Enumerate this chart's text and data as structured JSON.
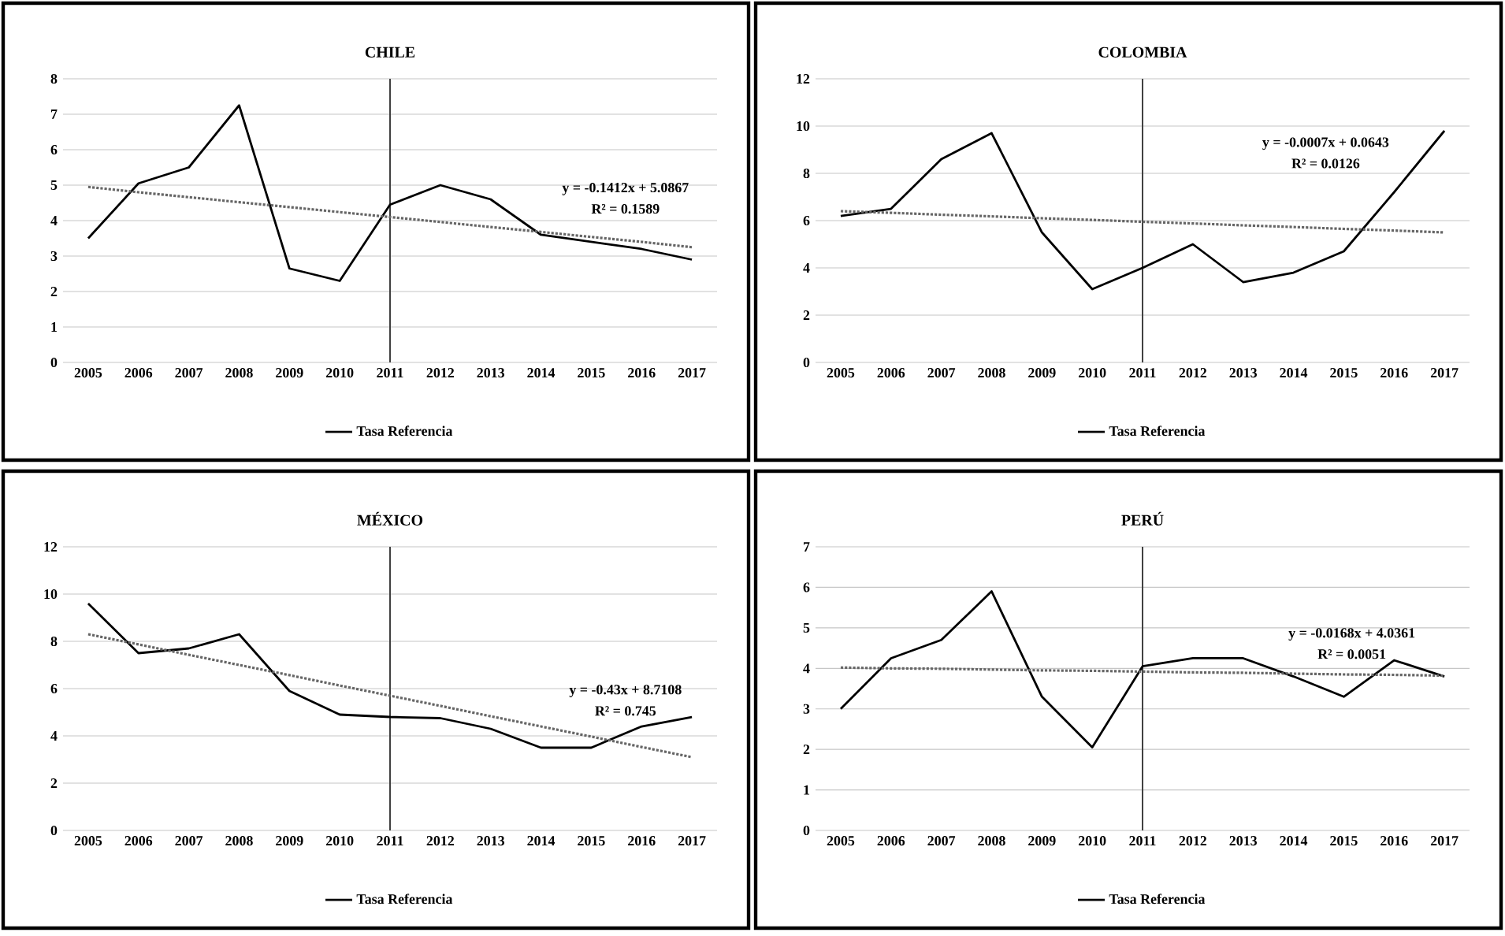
{
  "chart_data": [
    {
      "type": "line",
      "title": "CHILE",
      "categories": [
        "2005",
        "2006",
        "2007",
        "2008",
        "2009",
        "2010",
        "2011",
        "2012",
        "2013",
        "2014",
        "2015",
        "2016",
        "2017"
      ],
      "ylim": [
        0,
        8
      ],
      "yticks": [
        0,
        1,
        2,
        3,
        4,
        5,
        6,
        7,
        8
      ],
      "grid": "y",
      "legend": "bottom",
      "series": [
        {
          "name": "Tasa Referencia",
          "color": "#000000",
          "values": [
            3.5,
            5.05,
            5.5,
            7.25,
            2.65,
            2.3,
            4.45,
            5.0,
            4.6,
            3.6,
            3.4,
            3.2,
            2.9
          ]
        },
        {
          "type": "line",
          "values": [
            4.95,
            4.8,
            4.66,
            4.52,
            4.38,
            4.24,
            4.1,
            3.96,
            3.82,
            3.68,
            3.54,
            3.4,
            3.25
          ],
          "color": "#666666",
          "line_style": "dotted"
        }
      ],
      "ref_lines": [
        {
          "axis": "x",
          "value": "2011",
          "color": "#404040"
        }
      ],
      "annotations": [
        "y = -0.1412x + 5.0867",
        "R² = 0.1589"
      ]
    },
    {
      "type": "line",
      "title": "COLOMBIA",
      "categories": [
        "2005",
        "2006",
        "2007",
        "2008",
        "2009",
        "2010",
        "2011",
        "2012",
        "2013",
        "2014",
        "2015",
        "2016",
        "2017"
      ],
      "ylim": [
        0,
        12
      ],
      "yticks": [
        0,
        2,
        4,
        6,
        8,
        10,
        12
      ],
      "grid": "y",
      "legend": "bottom",
      "series": [
        {
          "name": "Tasa Referencia",
          "color": "#000000",
          "values": [
            6.2,
            6.5,
            8.6,
            9.7,
            5.5,
            3.1,
            4.0,
            5.0,
            3.4,
            3.8,
            4.7,
            7.2,
            9.8
          ]
        },
        {
          "type": "line",
          "values": [
            6.4,
            6.33,
            6.25,
            6.18,
            6.1,
            6.03,
            5.95,
            5.88,
            5.8,
            5.73,
            5.65,
            5.58,
            5.5
          ],
          "color": "#666666",
          "line_style": "dotted"
        }
      ],
      "ref_lines": [
        {
          "axis": "x",
          "value": "2011",
          "color": "#404040"
        }
      ],
      "annotations": [
        "y = -0.0007x + 0.0643",
        "R² = 0.0126"
      ]
    },
    {
      "type": "line",
      "title": "MÉXICO",
      "categories": [
        "2005",
        "2006",
        "2007",
        "2008",
        "2009",
        "2010",
        "2011",
        "2012",
        "2013",
        "2014",
        "2015",
        "2016",
        "2017"
      ],
      "ylim": [
        0,
        12
      ],
      "yticks": [
        0,
        2,
        4,
        6,
        8,
        10,
        12
      ],
      "grid": "y",
      "legend": "bottom",
      "series": [
        {
          "name": "Tasa Referencia",
          "color": "#000000",
          "values": [
            9.6,
            7.5,
            7.7,
            8.3,
            5.9,
            4.9,
            4.8,
            4.75,
            4.3,
            3.5,
            3.5,
            4.4,
            4.8
          ]
        },
        {
          "type": "line",
          "values": [
            8.3,
            7.87,
            7.43,
            7.0,
            6.57,
            6.13,
            5.7,
            5.27,
            4.83,
            4.4,
            3.97,
            3.53,
            3.1
          ],
          "color": "#666666",
          "line_style": "dotted"
        }
      ],
      "ref_lines": [
        {
          "axis": "x",
          "value": "2011",
          "color": "#404040"
        }
      ],
      "annotations": [
        "y = -0.43x + 8.7108",
        "R² = 0.745"
      ]
    },
    {
      "type": "line",
      "title": "PERÚ",
      "categories": [
        "2005",
        "2006",
        "2007",
        "2008",
        "2009",
        "2010",
        "2011",
        "2012",
        "2013",
        "2014",
        "2015",
        "2016",
        "2017"
      ],
      "ylim": [
        0,
        7
      ],
      "yticks": [
        0,
        1,
        2,
        3,
        4,
        5,
        6,
        7
      ],
      "grid": "y",
      "legend": "bottom",
      "series": [
        {
          "name": "Tasa Referencia",
          "color": "#000000",
          "values": [
            3.0,
            4.25,
            4.7,
            5.9,
            3.3,
            2.05,
            4.05,
            4.25,
            4.25,
            3.8,
            3.3,
            4.2,
            3.8
          ]
        },
        {
          "type": "line",
          "values": [
            4.02,
            4.0,
            3.99,
            3.97,
            3.95,
            3.94,
            3.92,
            3.9,
            3.89,
            3.87,
            3.85,
            3.84,
            3.82
          ],
          "color": "#666666",
          "line_style": "dotted"
        }
      ],
      "ref_lines": [
        {
          "axis": "x",
          "value": "2011",
          "color": "#404040"
        }
      ],
      "annotations": [
        "y = -0.0168x + 4.0361",
        "R² = 0.0051"
      ]
    }
  ]
}
